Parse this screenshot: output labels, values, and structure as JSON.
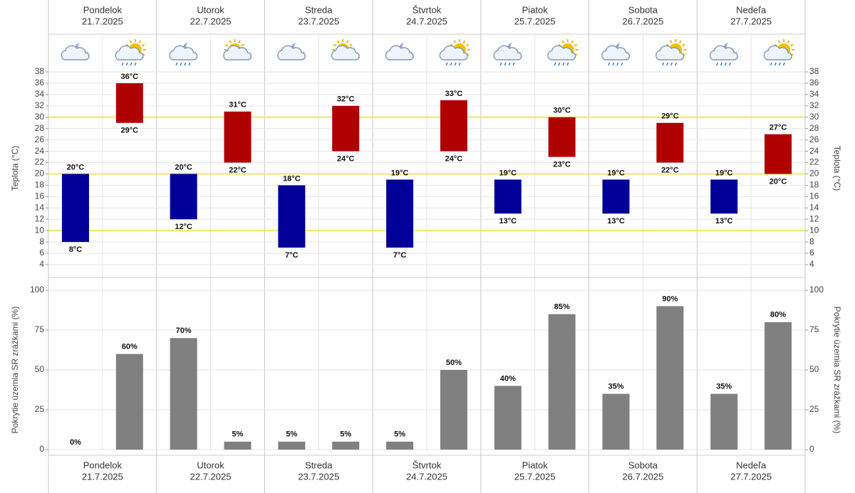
{
  "days": [
    {
      "name": "Pondelok",
      "date": "21.7.2025"
    },
    {
      "name": "Utorok",
      "date": "22.7.2025"
    },
    {
      "name": "Streda",
      "date": "23.7.2025"
    },
    {
      "name": "Štvrtok",
      "date": "24.7.2025"
    },
    {
      "name": "Piatok",
      "date": "25.7.2025"
    },
    {
      "name": "Sobota",
      "date": "26.7.2025"
    },
    {
      "name": "Nedeľa",
      "date": "27.7.2025"
    }
  ],
  "chart_data": [
    {
      "type": "range_bar",
      "y_label": "Teplota (°C)",
      "ylim": [
        4,
        38
      ],
      "yticks": [
        4,
        6,
        8,
        10,
        12,
        14,
        16,
        18,
        20,
        22,
        24,
        26,
        28,
        30,
        32,
        34,
        36,
        38
      ],
      "grid": true,
      "highlight_lines": [
        10,
        20,
        30
      ],
      "highlight_color": "#f0e860",
      "series": [
        {
          "color": "#000099",
          "low": [
            8,
            12,
            7,
            7,
            13,
            13,
            13
          ],
          "high": [
            20,
            20,
            18,
            19,
            19,
            19,
            19
          ],
          "low_labels": [
            "8°C",
            "12°C",
            "7°C",
            "7°C",
            "13°C",
            "13°C",
            "13°C"
          ],
          "high_labels": [
            "20°C",
            "20°C",
            "18°C",
            "19°C",
            "19°C",
            "19°C",
            "19°C"
          ]
        },
        {
          "color": "#b00000",
          "low": [
            29,
            22,
            24,
            24,
            23,
            22,
            20
          ],
          "high": [
            36,
            31,
            32,
            33,
            30,
            29,
            27
          ],
          "low_labels": [
            "29°C",
            "22°C",
            "24°C",
            "24°C",
            "23°C",
            "22°C",
            "20°C"
          ],
          "high_labels": [
            "36°C",
            "31°C",
            "32°C",
            "33°C",
            "30°C",
            "29°C",
            "27°C"
          ]
        }
      ]
    },
    {
      "type": "bar",
      "y_label": "Pokrytie územia SR zrážkami (%)",
      "ylim": [
        0,
        100
      ],
      "yticks": [
        0,
        25,
        50,
        75,
        100
      ],
      "grid": true,
      "series": [
        {
          "color": "#808080",
          "values": [
            0,
            70,
            5,
            5,
            40,
            35,
            35
          ],
          "value_labels": [
            "0%",
            "70%",
            "5%",
            "5%",
            "40%",
            "35%",
            "35%"
          ]
        },
        {
          "color": "#808080",
          "values": [
            60,
            5,
            5,
            50,
            85,
            90,
            80
          ],
          "value_labels": [
            "60%",
            "5%",
            "5%",
            "50%",
            "85%",
            "90%",
            "80%"
          ]
        }
      ]
    }
  ]
}
